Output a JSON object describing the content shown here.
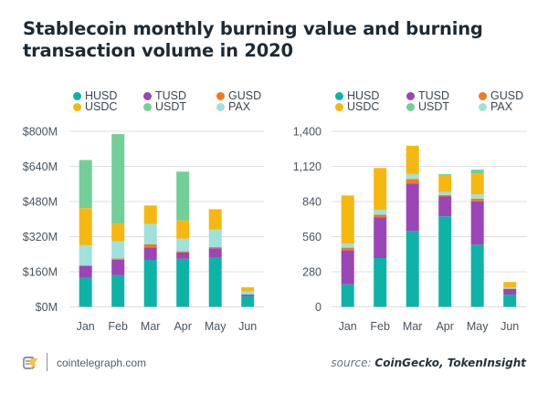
{
  "title": "Stablecoin monthly burning value and burning transaction volume in 2020",
  "footer": {
    "site": "cointelegraph.com",
    "source_prefix": "source:",
    "source_names": "CoinGecko, TokenInsight"
  },
  "legend": [
    {
      "name": "HUSD",
      "color": "#0db3a7"
    },
    {
      "name": "TUSD",
      "color": "#9c45b6"
    },
    {
      "name": "GUSD",
      "color": "#f07b1c"
    },
    {
      "name": "USDC",
      "color": "#f6b80f"
    },
    {
      "name": "USDT",
      "color": "#72cf98"
    },
    {
      "name": "PAX",
      "color": "#9fe1db"
    }
  ],
  "chart_data": [
    {
      "type": "bar",
      "stacked": true,
      "title": "Monthly burning value",
      "xlabel": "",
      "ylabel": "",
      "categories": [
        "Jan",
        "Feb",
        "Mar",
        "Apr",
        "May",
        "Jun"
      ],
      "ylim": [
        0,
        800
      ],
      "yticks": [
        0,
        160,
        320,
        480,
        640,
        800
      ],
      "ytick_labels": [
        "$0M",
        "$160M",
        "$320M",
        "$480M",
        "$640M",
        "$800M"
      ],
      "unit": "USD millions",
      "grid": true,
      "legend_position": "top",
      "stack_order": [
        "HUSD",
        "TUSD",
        "GUSD",
        "PAX",
        "USDC",
        "USDT"
      ],
      "series": [
        {
          "name": "HUSD",
          "values": [
            132,
            144,
            214,
            219,
            224,
            50
          ]
        },
        {
          "name": "TUSD",
          "values": [
            55,
            71,
            57,
            29,
            43,
            6
          ]
        },
        {
          "name": "GUSD",
          "values": [
            0,
            5,
            14,
            5,
            5,
            0
          ]
        },
        {
          "name": "PAX",
          "values": [
            94,
            79,
            93,
            58,
            80,
            14
          ]
        },
        {
          "name": "USDC",
          "values": [
            169,
            81,
            84,
            83,
            93,
            19
          ]
        },
        {
          "name": "USDT",
          "values": [
            219,
            407,
            0,
            222,
            0,
            0
          ]
        }
      ]
    },
    {
      "type": "bar",
      "stacked": true,
      "title": "Monthly burning transaction volume",
      "xlabel": "",
      "ylabel": "",
      "categories": [
        "Jan",
        "Feb",
        "Mar",
        "Apr",
        "May",
        "Jun"
      ],
      "ylim": [
        0,
        1400
      ],
      "yticks": [
        0,
        280,
        560,
        840,
        1120,
        1400
      ],
      "ytick_labels": [
        "0",
        "280",
        "560",
        "840",
        "1,120",
        "1,400"
      ],
      "unit": "transactions",
      "grid": true,
      "legend_position": "top",
      "stack_order": [
        "HUSD",
        "TUSD",
        "GUSD",
        "PAX",
        "USDC",
        "USDT"
      ],
      "series": [
        {
          "name": "HUSD",
          "values": [
            180,
            389,
            605,
            722,
            496,
            97
          ]
        },
        {
          "name": "TUSD",
          "values": [
            272,
            326,
            379,
            158,
            345,
            47
          ]
        },
        {
          "name": "GUSD",
          "values": [
            20,
            20,
            36,
            12,
            22,
            0
          ]
        },
        {
          "name": "PAX",
          "values": [
            34,
            39,
            39,
            25,
            34,
            10
          ]
        },
        {
          "name": "USDC",
          "values": [
            382,
            333,
            226,
            134,
            168,
            44
          ]
        },
        {
          "name": "USDT",
          "values": [
            0,
            0,
            0,
            7,
            29,
            0
          ]
        }
      ]
    }
  ]
}
